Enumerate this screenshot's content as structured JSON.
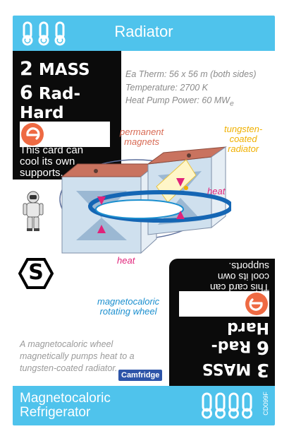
{
  "card": {
    "title": "Radiator",
    "stats": {
      "mass_value": "2",
      "mass_label": "MASS",
      "radhard_value": "6",
      "radhard_label": "Rad-Hard"
    },
    "ability_note_line1": "This card can",
    "ability_note_line2": "cool its own",
    "ability_note_line3": "supports.",
    "specs": {
      "line1": "Ea Therm: 56 x 56 m (both sides)",
      "line2": "Temperature: 2700 K",
      "line3_main": "Heat Pump Power: 60 MW",
      "line3_sub": "e"
    },
    "illustration_labels": {
      "permanent_line1": "permanent",
      "permanent_line2": "magnets",
      "tungsten_line1": "tungsten-",
      "tungsten_line2": "coated",
      "tungsten_line3": "radiator",
      "heat_top": "heat",
      "heat_bottom": "heat",
      "wheel_line1": "magnetocaloric",
      "wheel_line2": "rotating wheel"
    },
    "supports_icon_letter": "S",
    "description_line1": "A magnetocaloric wheel",
    "description_line2": "magnetically pumps heat to a",
    "description_line3": "tungsten-coated radiator.",
    "source_badge": "Camfridge",
    "flip_side": {
      "mass_value": "3",
      "mass_label": "MASS",
      "radhard_value": "6",
      "radhard_label": "Rad-Hard",
      "note_line1": "This card can",
      "note_line2": "cool its own",
      "note_line3": "supports."
    },
    "bottom_name_line1": "Magnetocaloric",
    "bottom_name_line2": "Refrigerator",
    "card_code": "CD099F"
  },
  "colors": {
    "band": "#4fc3ec",
    "e_circle": "#ee6a43",
    "magnet_label": "#d86a54",
    "tungsten_label": "#f0b000",
    "heat_label": "#e0237a",
    "wheel_label": "#1b8fcf",
    "badge": "#2d54a8"
  },
  "icons": [
    "thermometer-icon",
    "electric-e-icon",
    "astronaut-icon",
    "supports-hex-icon"
  ]
}
